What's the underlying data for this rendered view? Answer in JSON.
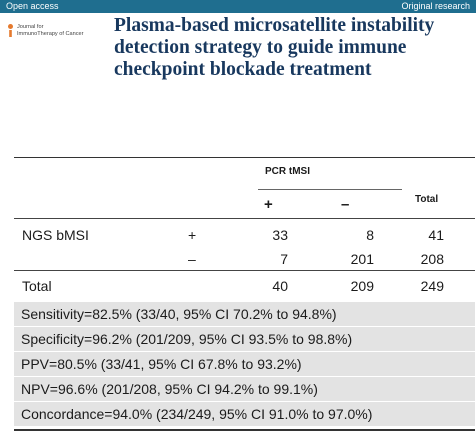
{
  "header": {
    "left_label": "Open access",
    "right_label": "Original research"
  },
  "logo": {
    "line1": "Journal for",
    "line2": "ImmunoTherapy of Cancer"
  },
  "title": {
    "line1": "Plasma-based microsatellite instability",
    "line2": "detection strategy to guide immune",
    "line3": "checkpoint blockade treatment"
  },
  "table": {
    "group_header": "PCR tMSI",
    "plus_sign": "+",
    "minus_sign": "–",
    "total_header": "Total",
    "row_header": "NGS bMSI",
    "rows": [
      {
        "sign": "+",
        "pos": "33",
        "neg": "8",
        "total": "41"
      },
      {
        "sign": "–",
        "pos": "7",
        "neg": "201",
        "total": "208"
      }
    ],
    "total_row": {
      "label": "Total",
      "pos": "40",
      "neg": "209",
      "total": "249"
    }
  },
  "stats": [
    "Sensitivity=82.5% (33/40, 95% CI 70.2% to 94.8%)",
    "Specificity=96.2% (201/209, 95% CI 93.5% to 98.8%)",
    "PPV=80.5% (33/41, 95% CI 67.8% to 93.2%)",
    "NPV=96.6% (201/208, 95% CI 94.2% to 99.1%)",
    "Concordance=94.0% (234/249, 95% CI 91.0% to 97.0%)"
  ]
}
